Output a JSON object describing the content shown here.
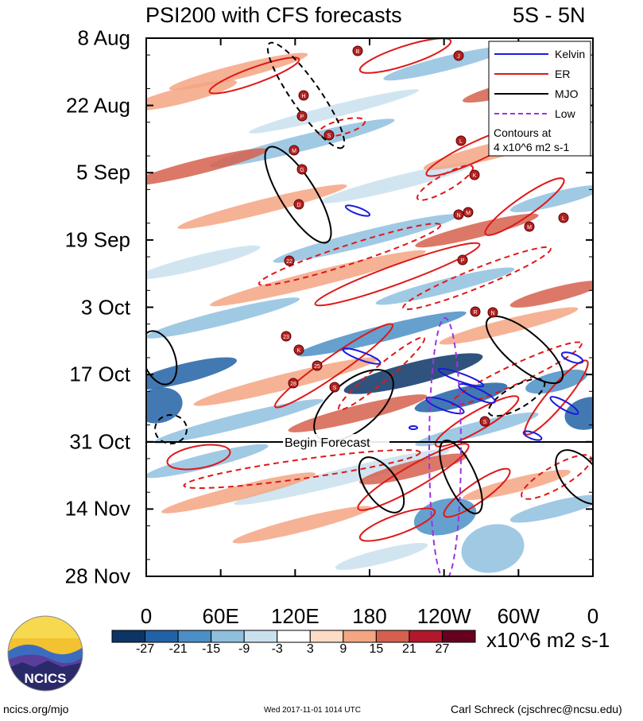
{
  "header": {
    "title": "PSI200 with CFS forecasts",
    "region": "5S - 5N"
  },
  "legend": {
    "items": [
      {
        "label": "Kelvin",
        "color": "#1a1adf",
        "dash": false
      },
      {
        "label": "ER",
        "color": "#e01818",
        "dash": false
      },
      {
        "label": "MJO",
        "color": "#000000",
        "dash": false
      },
      {
        "label": "Low",
        "color": "#a032e0",
        "dash": true
      }
    ],
    "contours_line1": "Contours at",
    "contours_line2": "4 x10^6 m2 s-1"
  },
  "forecast_label": "Begin Forecast",
  "colorbar": {
    "colors": [
      "#0c3566",
      "#2162a6",
      "#4a8fc6",
      "#8fbfdf",
      "#c9e1ef",
      "#ffffff",
      "#fddcc6",
      "#f4a582",
      "#d6604d",
      "#b2182b",
      "#67001f"
    ],
    "ticks": [
      "-27",
      "-21",
      "-15",
      "-9",
      "-3",
      "3",
      "9",
      "15",
      "21",
      "27"
    ],
    "units": "x10^6 m2 s-1"
  },
  "footer": {
    "site": "ncics.org/mjo",
    "timestamp": "Wed 2017-11-01 1014 UTC",
    "author": "Carl Schreck (cjschrec@ncsu.edu)",
    "logo_text": "NCICS"
  },
  "chart_data": {
    "type": "heatmap",
    "title": "PSI200 with CFS forecasts",
    "subtitle": "5S - 5N",
    "x": {
      "ticks": [
        "0",
        "60E",
        "120E",
        "180",
        "120W",
        "60W",
        "0"
      ],
      "range": [
        "0",
        "0"
      ]
    },
    "y": {
      "ticks": [
        "8 Aug",
        "22 Aug",
        "5 Sep",
        "19 Sep",
        "3 Oct",
        "17 Oct",
        "31 Oct",
        "14 Nov",
        "28 Nov"
      ],
      "range": [
        "8 Aug",
        "28 Nov"
      ],
      "inverted": true
    },
    "forecast_start": "31 Oct",
    "legend_position": "top-right",
    "storm_labels": [
      "B",
      "J",
      "H",
      "P",
      "S",
      "M",
      "G",
      "L",
      "K",
      "D",
      "N",
      "M",
      "22",
      "P",
      "R",
      "N",
      "23",
      "K",
      "25",
      "28",
      "S",
      "S",
      "L",
      "M"
    ]
  }
}
